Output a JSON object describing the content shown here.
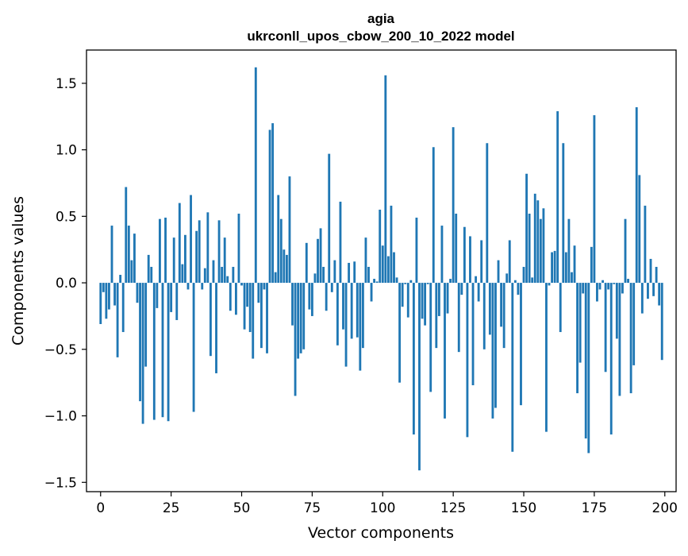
{
  "chart_data": {
    "type": "bar",
    "title": "agia",
    "subtitle": "ukrconll_upos_cbow_200_10_2022 model",
    "xlabel": "Vector components",
    "ylabel": "Components values",
    "xlim": [
      -5,
      204
    ],
    "ylim": [
      -1.57,
      1.75
    ],
    "xticks": [
      0,
      25,
      50,
      75,
      100,
      125,
      150,
      175,
      200
    ],
    "yticks": [
      -1.5,
      -1.0,
      -0.5,
      0.0,
      0.5,
      1.0,
      1.5
    ],
    "ytick_labels": [
      "−1.5",
      "−1.0",
      "−0.5",
      "0.0",
      "0.5",
      "1.0",
      "1.5"
    ],
    "bar_color": "#1f77b4",
    "grid": false,
    "x": [
      0,
      1,
      2,
      3,
      4,
      5,
      6,
      7,
      8,
      9,
      10,
      11,
      12,
      13,
      14,
      15,
      16,
      17,
      18,
      19,
      20,
      21,
      22,
      23,
      24,
      25,
      26,
      27,
      28,
      29,
      30,
      31,
      32,
      33,
      34,
      35,
      36,
      37,
      38,
      39,
      40,
      41,
      42,
      43,
      44,
      45,
      46,
      47,
      48,
      49,
      50,
      51,
      52,
      53,
      54,
      55,
      56,
      57,
      58,
      59,
      60,
      61,
      62,
      63,
      64,
      65,
      66,
      67,
      68,
      69,
      70,
      71,
      72,
      73,
      74,
      75,
      76,
      77,
      78,
      79,
      80,
      81,
      82,
      83,
      84,
      85,
      86,
      87,
      88,
      89,
      90,
      91,
      92,
      93,
      94,
      95,
      96,
      97,
      98,
      99,
      100,
      101,
      102,
      103,
      104,
      105,
      106,
      107,
      108,
      109,
      110,
      111,
      112,
      113,
      114,
      115,
      116,
      117,
      118,
      119,
      120,
      121,
      122,
      123,
      124,
      125,
      126,
      127,
      128,
      129,
      130,
      131,
      132,
      133,
      134,
      135,
      136,
      137,
      138,
      139,
      140,
      141,
      142,
      143,
      144,
      145,
      146,
      147,
      148,
      149,
      150,
      151,
      152,
      153,
      154,
      155,
      156,
      157,
      158,
      159,
      160,
      161,
      162,
      163,
      164,
      165,
      166,
      167,
      168,
      169,
      170,
      171,
      172,
      173,
      174,
      175,
      176,
      177,
      178,
      179,
      180,
      181,
      182,
      183,
      184,
      185,
      186,
      187,
      188,
      189,
      190,
      191,
      192,
      193,
      194,
      195,
      196,
      197,
      198,
      199
    ],
    "values": [
      -0.31,
      -0.07,
      -0.27,
      -0.2,
      0.43,
      -0.17,
      -0.56,
      0.06,
      -0.37,
      0.72,
      0.43,
      0.17,
      0.37,
      -0.15,
      -0.89,
      -1.06,
      -0.63,
      0.21,
      0.12,
      -1.03,
      -0.19,
      0.48,
      -1.01,
      0.49,
      -1.04,
      -0.22,
      0.34,
      -0.28,
      0.6,
      0.14,
      0.36,
      -0.05,
      0.66,
      -0.97,
      0.39,
      0.47,
      -0.05,
      0.11,
      0.53,
      -0.55,
      0.17,
      -0.68,
      0.47,
      0.12,
      0.34,
      0.05,
      -0.21,
      0.12,
      -0.24,
      0.52,
      -0.02,
      -0.35,
      -0.18,
      -0.37,
      -0.57,
      1.62,
      -0.15,
      -0.49,
      -0.05,
      -0.53,
      1.15,
      1.2,
      0.08,
      0.66,
      0.48,
      0.25,
      0.21,
      0.8,
      -0.32,
      -0.85,
      -0.57,
      -0.53,
      -0.5,
      0.3,
      -0.2,
      -0.25,
      0.07,
      0.33,
      0.41,
      0.12,
      -0.21,
      0.97,
      -0.07,
      0.17,
      -0.47,
      0.61,
      -0.35,
      -0.63,
      0.15,
      -0.42,
      0.16,
      -0.41,
      -0.66,
      -0.49,
      0.34,
      0.12,
      -0.14,
      0.03,
      0.01,
      0.55,
      0.28,
      1.56,
      0.2,
      0.58,
      0.23,
      0.04,
      -0.75,
      -0.18,
      -0.01,
      -0.26,
      0.02,
      -1.14,
      0.49,
      -1.41,
      -0.27,
      -0.32,
      -0.01,
      -0.82,
      1.02,
      -0.49,
      -0.25,
      0.43,
      -1.02,
      -0.23,
      0.03,
      1.17,
      0.52,
      -0.52,
      -0.09,
      0.42,
      -1.16,
      0.35,
      -0.77,
      0.05,
      -0.14,
      0.32,
      -0.5,
      1.05,
      -0.39,
      -1.02,
      -0.94,
      0.17,
      -0.33,
      -0.49,
      0.07,
      0.32,
      -1.27,
      0.02,
      -0.09,
      -0.92,
      0.12,
      0.82,
      0.52,
      0.04,
      0.67,
      0.62,
      0.48,
      0.56,
      -1.12,
      -0.02,
      0.23,
      0.24,
      1.29,
      -0.37,
      1.05,
      0.23,
      0.48,
      0.08,
      0.28,
      -0.83,
      -0.6,
      -0.08,
      -1.17,
      -1.28,
      0.27,
      1.26,
      -0.14,
      -0.05,
      0.02,
      -0.67,
      -0.05,
      -1.14,
      -0.01,
      -0.42,
      -0.85,
      -0.08,
      0.48,
      0.03,
      -0.83,
      -0.62,
      1.32,
      0.81,
      -0.23,
      0.58,
      -0.12,
      0.18,
      -0.1,
      0.12,
      -0.17,
      -0.58
    ]
  }
}
